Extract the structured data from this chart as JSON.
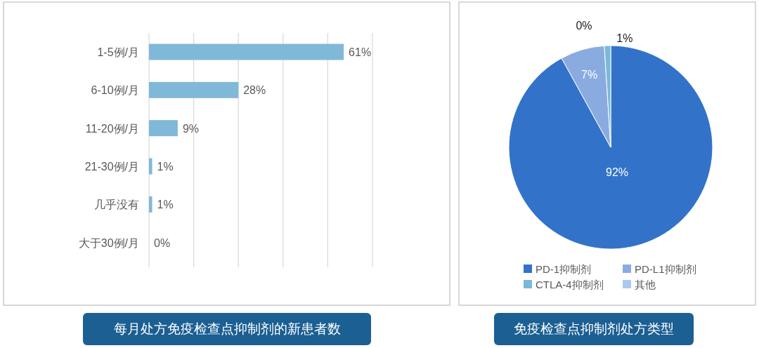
{
  "chart_data": [
    {
      "type": "bar",
      "orientation": "horizontal",
      "title": "每月处方免疫检查点抑制剂的新患者数",
      "categories": [
        "1-5例/月",
        "6-10例/月",
        "11-20例/月",
        "21-30例/月",
        "几乎没有",
        "大于30例/月"
      ],
      "values": [
        61,
        28,
        9,
        1,
        1,
        0
      ],
      "value_labels": [
        "61%",
        "28%",
        "9%",
        "1%",
        "1%",
        "0%"
      ],
      "color": "#80b8d8",
      "xlim": [
        0,
        70
      ],
      "xticks": [
        {
          "value": 0,
          "label": null
        },
        {
          "value": 14,
          "label": null
        },
        {
          "value": 28,
          "label": null
        },
        {
          "value": 42,
          "label": null
        },
        {
          "value": 56,
          "label": null
        },
        {
          "value": 70,
          "label": null
        }
      ],
      "grid": "x"
    },
    {
      "type": "pie",
      "title": "免疫检查点抑制剂处方类型",
      "categories": [
        "PD-1抑制剂",
        "PD-L1抑制剂",
        "CTLA-4抑制剂",
        "其他"
      ],
      "values": [
        92,
        7,
        1,
        0
      ],
      "value_labels": [
        "92%",
        "7%",
        "1%",
        "0%"
      ],
      "colors": [
        "#3273c9",
        "#8aabe0",
        "#7ab8d8",
        "#a9c9ee"
      ],
      "legend": "bottom"
    }
  ]
}
